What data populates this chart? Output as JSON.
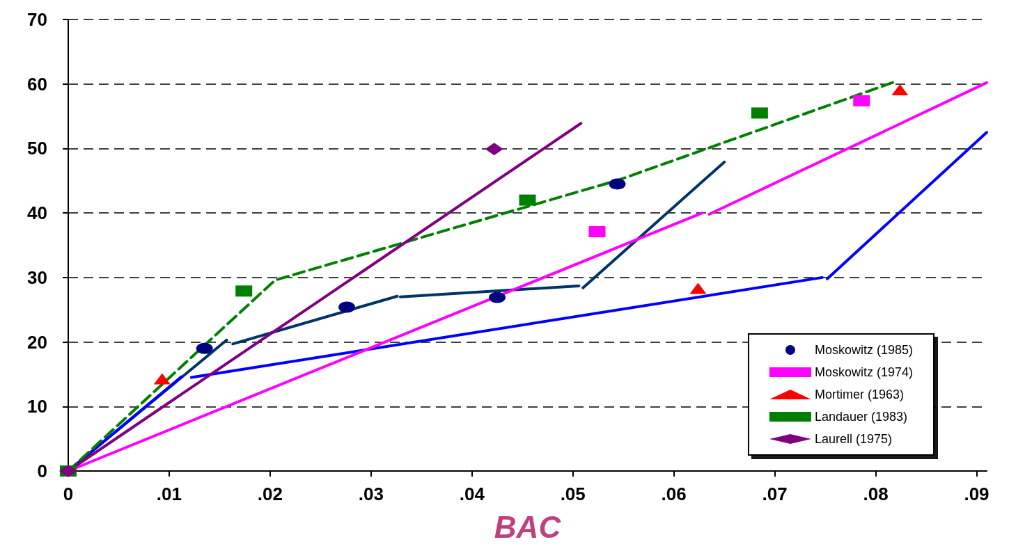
{
  "chart_data": {
    "type": "scatter",
    "xlabel": "BAC",
    "xlim": [
      0,
      0.091
    ],
    "ylim": [
      0,
      70
    ],
    "xticks": [
      0,
      {
        "value": 0.01,
        "label": ".01"
      },
      {
        "value": 0.02,
        "label": ".02"
      },
      {
        "value": 0.03,
        "label": ".03"
      },
      {
        "value": 0.04,
        "label": ".04"
      },
      {
        "value": 0.05,
        "label": ".05"
      },
      {
        "value": 0.06,
        "label": ".06"
      },
      {
        "value": 0.07,
        "label": ".07"
      },
      {
        "value": 0.08,
        "label": ".08"
      },
      {
        "value": 0.09,
        "label": ".09"
      }
    ],
    "yticks": [
      0,
      10,
      20,
      30,
      40,
      50,
      60,
      70
    ],
    "grid": "y",
    "legend": "bottom right",
    "series": [
      {
        "name": "Moskowitz (1985)",
        "marker": "circle",
        "color": "#000080",
        "x": [
          0.0135,
          0.0276,
          0.0425,
          0.0544
        ],
        "values": [
          19,
          25.4,
          26.9,
          44.5
        ]
      },
      {
        "name": "Moskowitz (1974)",
        "marker": "square",
        "color": "#ff00ff",
        "x": [
          0.0524,
          0.0786
        ],
        "values": [
          37.1,
          57.4
        ]
      },
      {
        "name": "Mortimer (1963)",
        "marker": "triangle",
        "color": "#ff0000",
        "x": [
          0.0093,
          0.0624,
          0.0824
        ],
        "values": [
          14.3,
          28.3,
          59.1
        ]
      },
      {
        "name": "Landauer (1983)",
        "marker": "square",
        "color": "#008000",
        "x": [
          0,
          0.0174,
          0.0455,
          0.0685
        ],
        "values": [
          0,
          27.9,
          42,
          55.5
        ]
      },
      {
        "name": "Laurell (1975)",
        "marker": "diamond",
        "color": "#800080",
        "x": [
          0,
          0.0422
        ],
        "values": [
          0,
          49.9
        ]
      },
      {
        "type": "line",
        "color": "#003366",
        "x": [
          0,
          0.0157
        ],
        "values": [
          0,
          20.3
        ]
      },
      {
        "type": "line",
        "color": "#003366",
        "x": [
          0.0163,
          0.0326
        ],
        "values": [
          19.7,
          27.1
        ]
      },
      {
        "type": "line",
        "color": "#003366",
        "x": [
          0.0329,
          0.0506
        ],
        "values": [
          27,
          28.7
        ]
      },
      {
        "type": "line",
        "color": "#003366",
        "x": [
          0.051,
          0.065
        ],
        "values": [
          28.4,
          47.9
        ]
      },
      {
        "type": "line",
        "color": "#0000ff",
        "x": [
          0,
          0.0112
        ],
        "values": [
          0,
          14.6
        ]
      },
      {
        "type": "line",
        "color": "#0000ff",
        "x": [
          0.0122,
          0.0747
        ],
        "values": [
          14.5,
          30
        ]
      },
      {
        "type": "line",
        "color": "#0000ff",
        "x": [
          0.0752,
          0.091
        ],
        "values": [
          29.8,
          52.5
        ]
      },
      {
        "type": "line",
        "color": "#ff00ff",
        "x": [
          0,
          0.0628
        ],
        "values": [
          0,
          40
        ]
      },
      {
        "type": "line",
        "color": "#ff00ff",
        "x": [
          0.0635,
          0.091
        ],
        "values": [
          39.8,
          60.2
        ]
      },
      {
        "type": "line",
        "color": "#008000",
        "line_style": "dashed",
        "x": [
          0,
          0.0205,
          0.0545,
          0.082
        ],
        "values": [
          0,
          29.6,
          45.1,
          60.4
        ]
      },
      {
        "type": "line",
        "color": "#800080",
        "x": [
          0,
          0.0508
        ],
        "values": [
          0,
          53.9
        ]
      }
    ]
  }
}
